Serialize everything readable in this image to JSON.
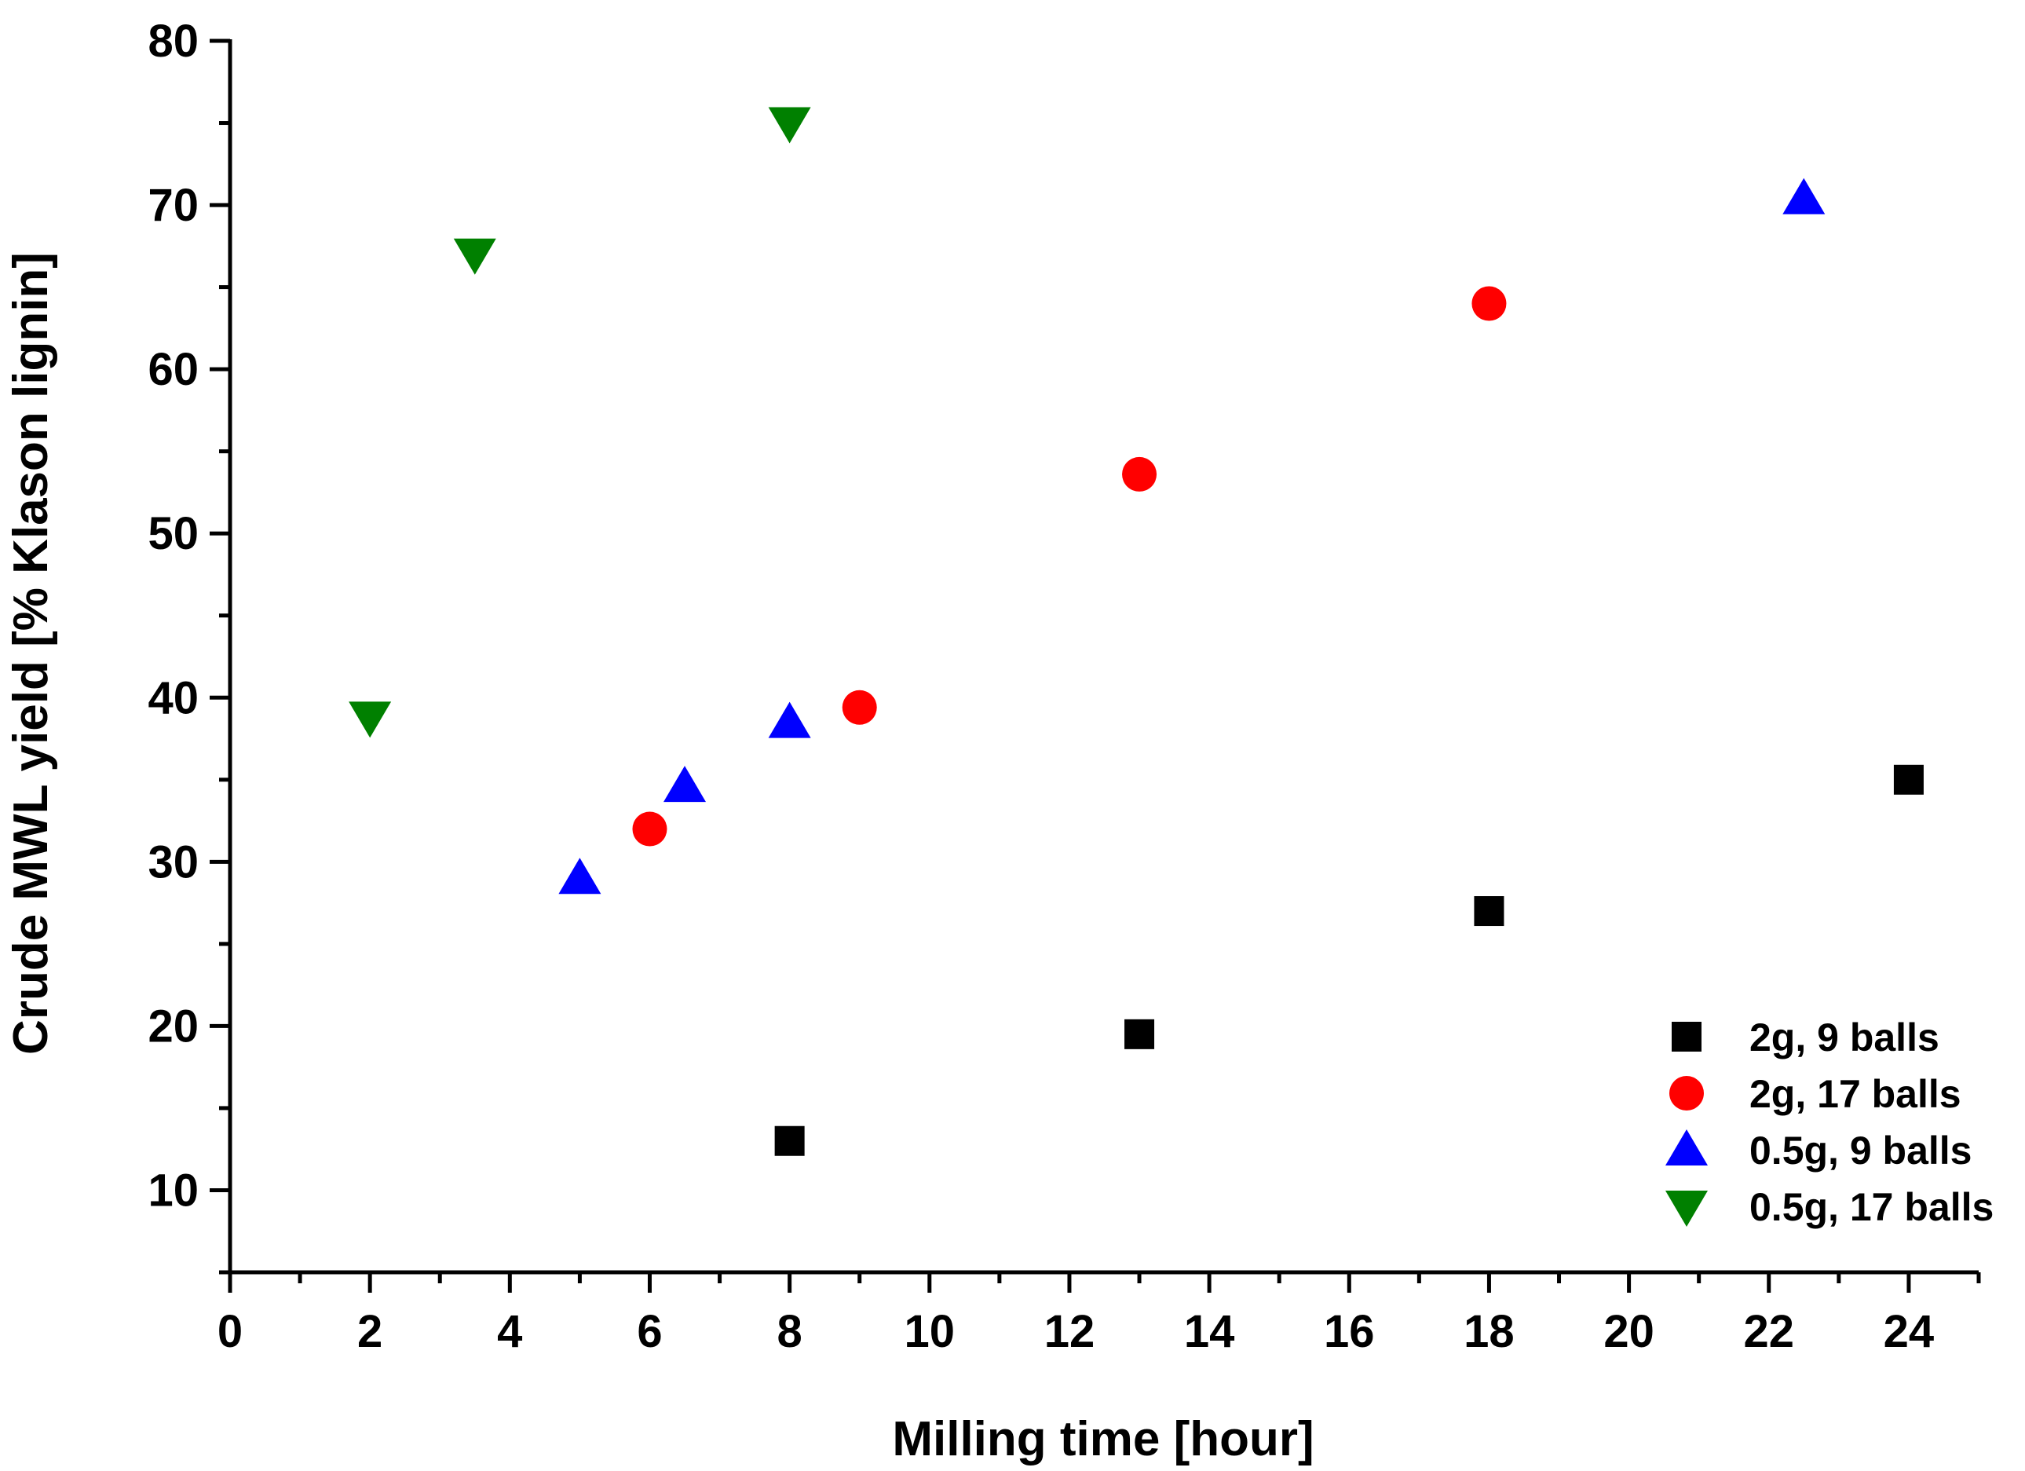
{
  "chart_data": {
    "type": "scatter",
    "title": "",
    "xlabel": "Milling time [hour]",
    "ylabel": "Crude MWL yield [% Klason lignin]",
    "xlim": [
      0,
      25
    ],
    "ylim": [
      5,
      80
    ],
    "x_major_ticks": [
      0,
      2,
      4,
      6,
      8,
      10,
      12,
      14,
      16,
      18,
      20,
      22,
      24
    ],
    "y_major_ticks": [
      10,
      20,
      30,
      40,
      50,
      60,
      70,
      80
    ],
    "x_tick_labels": [
      "0",
      "2",
      "4",
      "6",
      "8",
      "10",
      "12",
      "14",
      "16",
      "18",
      "20",
      "22",
      "24"
    ],
    "y_tick_labels": [
      "10",
      "20",
      "30",
      "40",
      "50",
      "60",
      "70",
      "80"
    ],
    "grid": false,
    "legend_position": "bottom-right",
    "series": [
      {
        "name": "2g, 9 balls",
        "marker": "square",
        "color": "#000000",
        "points": [
          {
            "x": 8,
            "y": 13
          },
          {
            "x": 13,
            "y": 19.5
          },
          {
            "x": 18,
            "y": 27
          },
          {
            "x": 24,
            "y": 35
          }
        ]
      },
      {
        "name": "2g, 17 balls",
        "marker": "circle",
        "color": "#ff0000",
        "points": [
          {
            "x": 6,
            "y": 32
          },
          {
            "x": 9,
            "y": 39.4
          },
          {
            "x": 13,
            "y": 53.6
          },
          {
            "x": 18,
            "y": 64
          }
        ]
      },
      {
        "name": "0.5g, 9 balls",
        "marker": "triangle-up",
        "color": "#0000ff",
        "points": [
          {
            "x": 5,
            "y": 29
          },
          {
            "x": 6.5,
            "y": 34.6
          },
          {
            "x": 8,
            "y": 38.5
          },
          {
            "x": 22.5,
            "y": 70.4
          }
        ]
      },
      {
        "name": "0.5g, 17 balls",
        "marker": "triangle-down",
        "color": "#008000",
        "points": [
          {
            "x": 2,
            "y": 38.8
          },
          {
            "x": 3.5,
            "y": 67
          },
          {
            "x": 8,
            "y": 75
          }
        ]
      }
    ]
  }
}
